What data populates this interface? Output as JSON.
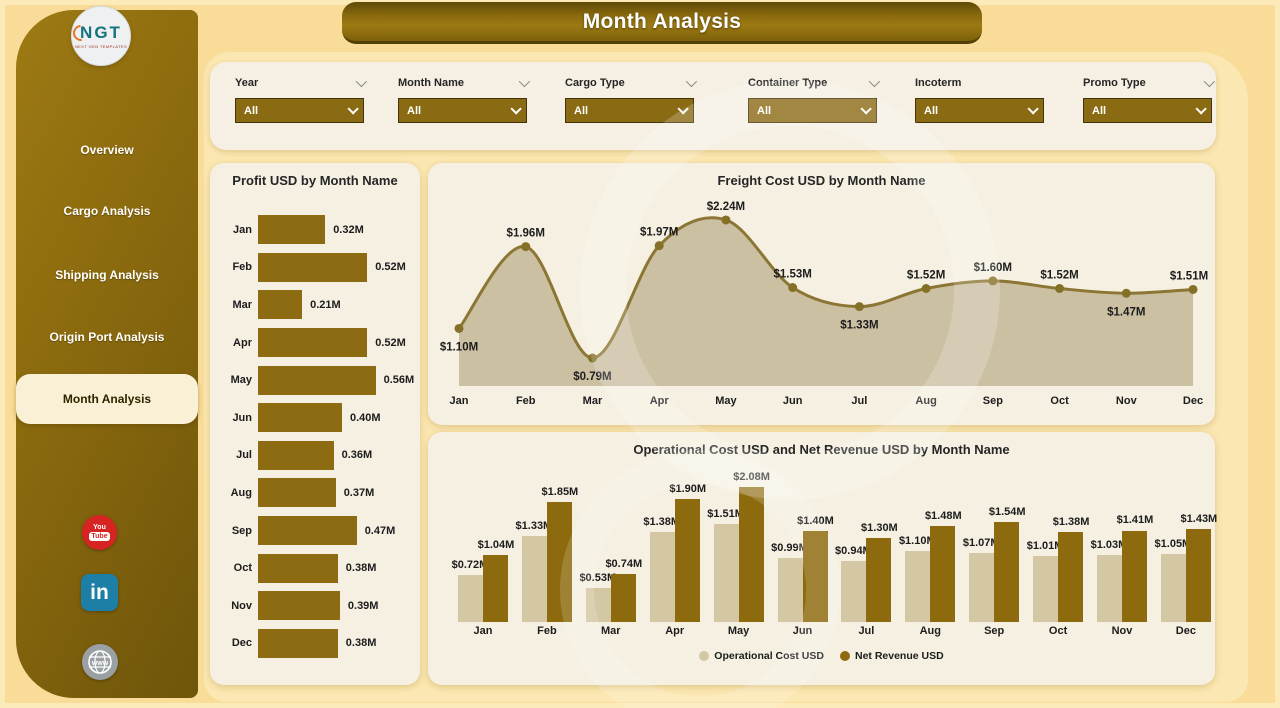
{
  "title": "Month Analysis",
  "logo": {
    "text": "NGT",
    "subtext": "NEXT GEN TEMPLATES"
  },
  "sidebar": {
    "items": [
      {
        "label": "Overview",
        "active": false
      },
      {
        "label": "Cargo Analysis",
        "active": false
      },
      {
        "label": "Shipping Analysis",
        "active": false
      },
      {
        "label": "Origin Port Analysis",
        "active": false
      },
      {
        "label": "Month Analysis",
        "active": true
      }
    ]
  },
  "social": [
    {
      "name": "youtube",
      "text_top": "You",
      "text_bottom": "Tube"
    },
    {
      "name": "linkedin",
      "text": "in"
    },
    {
      "name": "website",
      "text": "www"
    }
  ],
  "filters": [
    {
      "label": "Year",
      "value": "All",
      "label_chevron": true
    },
    {
      "label": "Month Name",
      "value": "All",
      "label_chevron": true
    },
    {
      "label": "Cargo Type",
      "value": "All",
      "label_chevron": true
    },
    {
      "label": "Container Type",
      "value": "All",
      "label_chevron": true
    },
    {
      "label": "Incoterm",
      "value": "All",
      "label_chevron": false
    },
    {
      "label": "Promo Type",
      "value": "All",
      "label_chevron": true
    }
  ],
  "colors": {
    "bar": "#8d6b13",
    "area_fill": "#c9bd9f",
    "area_stroke": "#8c7634",
    "marker": "#857027",
    "op_cost": "#d4c7a4",
    "net_rev": "#8d6a0d",
    "youtube_red": "#d62423",
    "linkedin_blue": "#1d7fa5",
    "globe_gray": "#9aa0a3",
    "accent_dark": "#8a690e"
  },
  "chart_data": [
    {
      "type": "bar",
      "orientation": "horizontal",
      "title": "Profit USD by Month Name",
      "categories": [
        "Jan",
        "Feb",
        "Mar",
        "Apr",
        "May",
        "Jun",
        "Jul",
        "Aug",
        "Sep",
        "Oct",
        "Nov",
        "Dec"
      ],
      "values": [
        0.32,
        0.52,
        0.21,
        0.52,
        0.56,
        0.4,
        0.36,
        0.37,
        0.47,
        0.38,
        0.39,
        0.38
      ],
      "labels": [
        "0.32M",
        "0.52M",
        "0.21M",
        "0.52M",
        "0.56M",
        "0.40M",
        "0.36M",
        "0.37M",
        "0.47M",
        "0.38M",
        "0.39M",
        "0.38M"
      ],
      "xlabel": "",
      "ylabel": "",
      "xlim": [
        0,
        0.6
      ]
    },
    {
      "type": "area",
      "title": "Freight Cost USD by Month Name",
      "categories": [
        "Jan",
        "Feb",
        "Mar",
        "Apr",
        "May",
        "Jun",
        "Jul",
        "Aug",
        "Sep",
        "Oct",
        "Nov",
        "Dec"
      ],
      "values": [
        1.1,
        1.96,
        0.79,
        1.97,
        2.24,
        1.53,
        1.33,
        1.52,
        1.6,
        1.52,
        1.47,
        1.51
      ],
      "labels": [
        "$1.10M",
        "$1.96M",
        "$0.79M",
        "$1.97M",
        "$2.24M",
        "$1.53M",
        "$1.33M",
        "$1.52M",
        "$1.60M",
        "$1.52M",
        "$1.47M",
        "$1.51M"
      ],
      "label_below_indices": [
        0,
        2,
        6,
        10
      ],
      "xlabel": "",
      "ylabel": "",
      "ylim": [
        0.5,
        2.3
      ],
      "grid": false,
      "legend": "none"
    },
    {
      "type": "bar",
      "grouped": true,
      "title": "Operational Cost USD and Net Revenue USD by Month Name",
      "categories": [
        "Jan",
        "Feb",
        "Mar",
        "Apr",
        "May",
        "Jun",
        "Jul",
        "Aug",
        "Sep",
        "Oct",
        "Nov",
        "Dec"
      ],
      "series": [
        {
          "name": "Operational Cost USD",
          "values": [
            0.72,
            1.33,
            0.53,
            1.38,
            1.51,
            0.99,
            0.94,
            1.1,
            1.07,
            1.01,
            1.03,
            1.05
          ],
          "labels": [
            "$0.72M",
            "$1.33M",
            "$0.53M",
            "$1.38M",
            "$1.51M",
            "$0.99M",
            "$0.94M",
            "$1.10M",
            "$1.07M",
            "$1.01M",
            "$1.03M",
            "$1.05M"
          ]
        },
        {
          "name": "Net Revenue USD",
          "values": [
            1.04,
            1.85,
            0.74,
            1.9,
            2.08,
            1.4,
            1.3,
            1.48,
            1.54,
            1.38,
            1.41,
            1.43
          ],
          "labels": [
            "$1.04M",
            "$1.85M",
            "$0.74M",
            "$1.90M",
            "$2.08M",
            "$1.40M",
            "$1.30M",
            "$1.48M",
            "$1.54M",
            "$1.38M",
            "$1.41M",
            "$1.43M"
          ]
        }
      ],
      "legend_position": "bottom",
      "ylim": [
        0,
        2.2
      ],
      "grid": false
    }
  ]
}
